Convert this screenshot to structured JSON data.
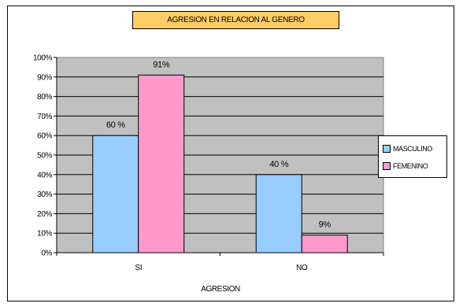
{
  "chart_data": {
    "type": "bar",
    "title": "AGRESION EN RELACION AL GENERO",
    "xlabel": "AGRESION",
    "ylabel": "",
    "categories": [
      "SI",
      "NO"
    ],
    "series": [
      {
        "name": "MASCULINO",
        "color": "#99ccff",
        "values": [
          60,
          40
        ],
        "labels": [
          "60 %",
          "40 %"
        ]
      },
      {
        "name": "FEMENINO",
        "color": "#ff99cc",
        "values": [
          91,
          9
        ],
        "labels": [
          "91%",
          "9%"
        ]
      }
    ],
    "ylim": [
      0,
      100
    ],
    "y_ticks": [
      "0%",
      "10%",
      "20%",
      "30%",
      "40%",
      "50%",
      "60%",
      "70%",
      "80%",
      "90%",
      "100%"
    ],
    "grid": true,
    "plot_background": "#c0c0c0",
    "legend_position": "right"
  }
}
